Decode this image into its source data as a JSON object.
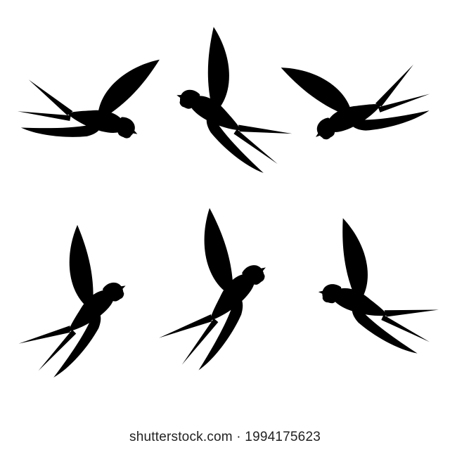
{
  "image": {
    "subject": "six swallows in flight",
    "palette": {
      "outline": "#1f1f1f",
      "face": "#e8643a",
      "background": "#ffffff"
    }
  },
  "watermark": {
    "text": "shutterstock.com · 1994175623"
  }
}
